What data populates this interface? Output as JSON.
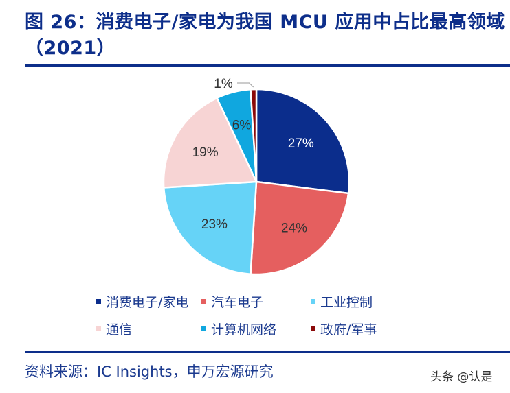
{
  "title": "图 26：消费电子/家电为我国 MCU 应用中占比最高领域（2021）",
  "chart_data": {
    "type": "pie",
    "start": "12 o'clock, clockwise",
    "labels": [
      "消费电子/家电",
      "汽车电子",
      "工业控制",
      "通信",
      "计算机网络",
      "政府/军事"
    ],
    "values": [
      27,
      24,
      23,
      19,
      6,
      1
    ],
    "data_labels": [
      "27%",
      "24%",
      "23%",
      "19%",
      "6%",
      "1%"
    ],
    "colors": [
      "#0b2d8c",
      "#e55f5f",
      "#66d3f7",
      "#f7d4d4",
      "#10a7df",
      "#8b0a0a"
    ],
    "legend_position": "bottom"
  },
  "source": "资料来源：IC Insights，申万宏源研究",
  "watermark": "头条 @认是"
}
